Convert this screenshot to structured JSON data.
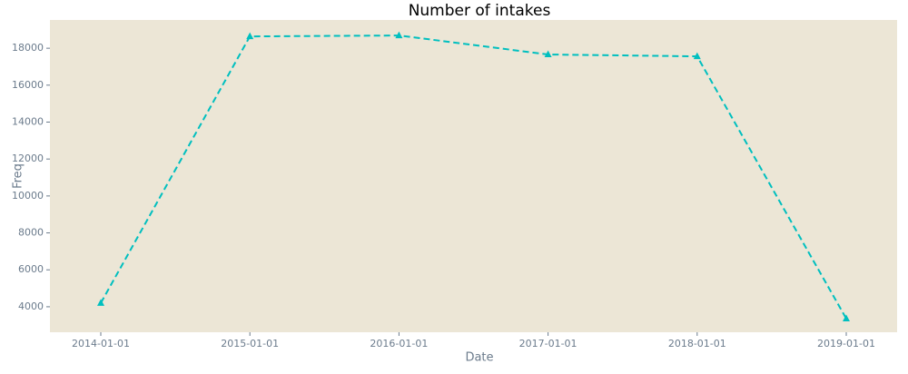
{
  "chart_data": {
    "type": "line",
    "title": "Number of intakes",
    "xlabel": "Date",
    "ylabel": "Freq",
    "categories": [
      "2014-01-01",
      "2015-01-01",
      "2016-01-01",
      "2017-01-01",
      "2018-01-01",
      "2019-01-01"
    ],
    "values": [
      4200,
      18640,
      18690,
      17660,
      17560,
      3360
    ],
    "color": "#00bfbf",
    "marker": "triangle",
    "linestyle": "dashed",
    "ylim": [
      2620,
      19530
    ],
    "yticks": [
      4000,
      6000,
      8000,
      10000,
      12000,
      14000,
      16000,
      18000
    ],
    "background": "#ece6d6",
    "grid": false
  }
}
